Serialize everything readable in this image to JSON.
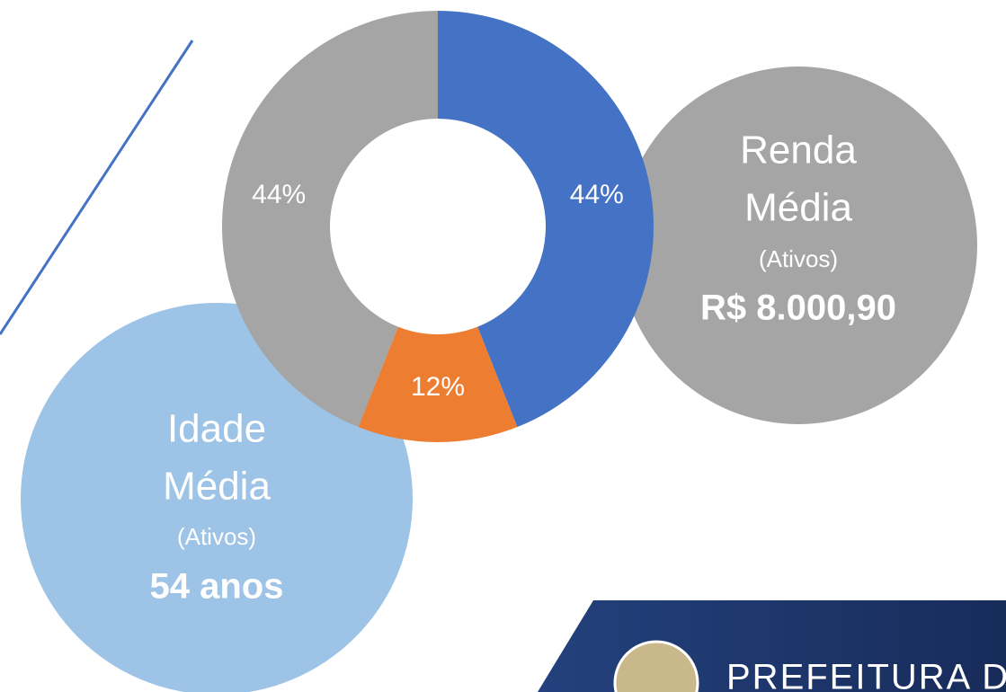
{
  "chart_data": {
    "type": "donut",
    "values": [
      44,
      12,
      44
    ],
    "value_labels": [
      "44%",
      "12%",
      "44%"
    ],
    "colors": [
      "#4472c4",
      "#ed7d31",
      "#a5a5a5"
    ]
  },
  "callouts": [
    {
      "lines": [
        "Renda",
        "Média"
      ],
      "sub": "(Ativos)",
      "value": "R$ 8.000,90"
    },
    {
      "lines": [
        "Idade",
        "Média"
      ],
      "sub": "(Ativos)",
      "value": "54 anos"
    }
  ],
  "logo": {
    "text": "PREFEITURA D"
  }
}
